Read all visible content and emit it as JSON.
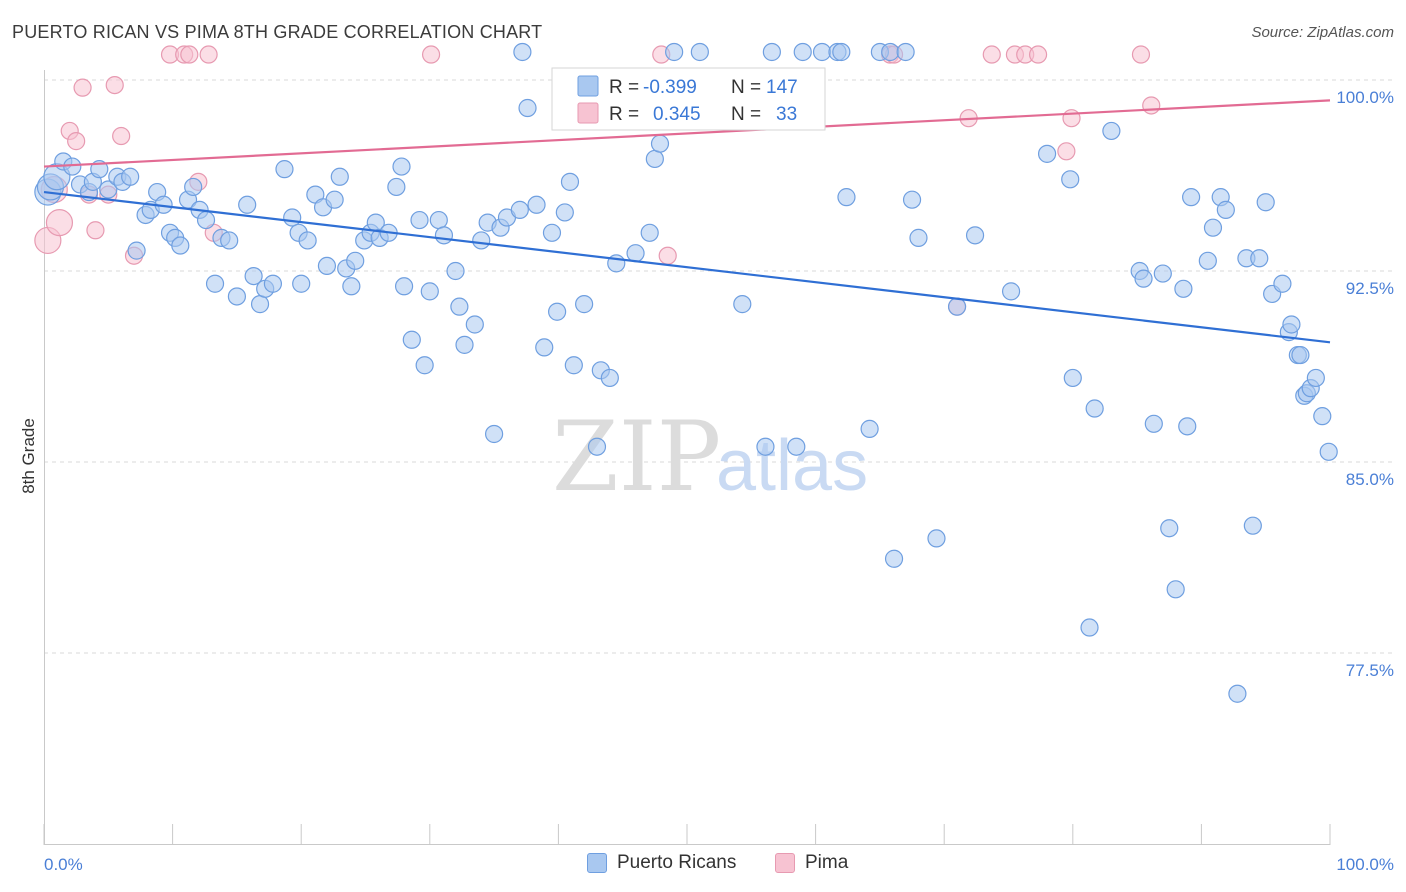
{
  "header": {
    "title": "PUERTO RICAN VS PIMA 8TH GRADE CORRELATION CHART",
    "source": "Source: ZipAtlas.com"
  },
  "watermark": {
    "zip": "ZIP",
    "atlas": "atlas"
  },
  "colors": {
    "blue_fill": "#a9c8f0",
    "blue_stroke": "#6f9fe0",
    "blue_line": "#2f6fd4",
    "pink_fill": "#f7c3d2",
    "pink_stroke": "#e79ab1",
    "pink_line": "#e26b93",
    "accent_text": "#3a78d6",
    "grid": "#d9d9d9"
  },
  "legend": {
    "rows": [
      {
        "r_label": "R =",
        "r_value": "-0.399",
        "n_label": "N =",
        "n_value": "147",
        "series": "blue"
      },
      {
        "r_label": "R =",
        "r_value": "0.345",
        "n_label": "N =",
        "n_value": "33",
        "series": "pink"
      }
    ]
  },
  "bottom_legend": [
    {
      "label": "Puerto Ricans",
      "series": "blue"
    },
    {
      "label": "Pima",
      "series": "pink"
    }
  ],
  "chart_data": {
    "type": "scatter",
    "title": "PUERTO RICAN VS PIMA 8TH GRADE CORRELATION CHART",
    "xlabel": "",
    "ylabel": "8th Grade",
    "xlim": [
      0,
      100
    ],
    "ylim": [
      70,
      101.5
    ],
    "x_tick_labels": [
      "0.0%",
      "100.0%"
    ],
    "y_ticks": [
      {
        "value": 100.0,
        "label": "100.0%"
      },
      {
        "value": 92.5,
        "label": "92.5%"
      },
      {
        "value": 85.0,
        "label": "85.0%"
      },
      {
        "value": 77.5,
        "label": "77.5%"
      }
    ],
    "series": [
      {
        "name": "Puerto Ricans",
        "color": "blue",
        "r": -0.399,
        "n": 147,
        "trend": {
          "x": [
            0,
            100
          ],
          "y": [
            95.6,
            89.7
          ]
        },
        "points": [
          [
            0.3,
            95.6
          ],
          [
            0.5,
            95.8
          ],
          [
            1.0,
            96.2
          ],
          [
            1.5,
            96.8
          ],
          [
            2.2,
            96.6
          ],
          [
            2.8,
            95.9
          ],
          [
            3.5,
            95.6
          ],
          [
            3.8,
            96.0
          ],
          [
            4.3,
            96.5
          ],
          [
            5.0,
            95.7
          ],
          [
            5.7,
            96.2
          ],
          [
            6.1,
            96.0
          ],
          [
            6.7,
            96.2
          ],
          [
            7.2,
            93.3
          ],
          [
            7.9,
            94.7
          ],
          [
            8.3,
            94.9
          ],
          [
            8.8,
            95.6
          ],
          [
            9.3,
            95.1
          ],
          [
            9.8,
            94.0
          ],
          [
            10.2,
            93.8
          ],
          [
            10.6,
            93.5
          ],
          [
            11.2,
            95.3
          ],
          [
            11.6,
            95.8
          ],
          [
            12.1,
            94.9
          ],
          [
            12.6,
            94.5
          ],
          [
            13.3,
            92.0
          ],
          [
            13.8,
            93.8
          ],
          [
            14.4,
            93.7
          ],
          [
            15.0,
            91.5
          ],
          [
            15.8,
            95.1
          ],
          [
            16.3,
            92.3
          ],
          [
            16.8,
            91.2
          ],
          [
            17.2,
            91.8
          ],
          [
            17.8,
            92.0
          ],
          [
            18.7,
            96.5
          ],
          [
            19.3,
            94.6
          ],
          [
            19.8,
            94.0
          ],
          [
            20.0,
            92.0
          ],
          [
            20.5,
            93.7
          ],
          [
            21.1,
            95.5
          ],
          [
            21.7,
            95.0
          ],
          [
            22.0,
            92.7
          ],
          [
            22.6,
            95.3
          ],
          [
            23.0,
            96.2
          ],
          [
            23.5,
            92.6
          ],
          [
            23.9,
            91.9
          ],
          [
            24.2,
            92.9
          ],
          [
            24.9,
            93.7
          ],
          [
            25.4,
            94.0
          ],
          [
            25.8,
            94.4
          ],
          [
            26.1,
            93.8
          ],
          [
            26.8,
            94.0
          ],
          [
            27.4,
            95.8
          ],
          [
            27.8,
            96.6
          ],
          [
            28.0,
            91.9
          ],
          [
            28.6,
            89.8
          ],
          [
            29.2,
            94.5
          ],
          [
            29.6,
            88.8
          ],
          [
            30.0,
            91.7
          ],
          [
            30.7,
            94.5
          ],
          [
            31.1,
            93.9
          ],
          [
            32.0,
            92.5
          ],
          [
            32.3,
            91.1
          ],
          [
            32.7,
            89.6
          ],
          [
            33.5,
            90.4
          ],
          [
            34.0,
            93.7
          ],
          [
            34.5,
            94.4
          ],
          [
            35.0,
            86.1
          ],
          [
            35.5,
            94.2
          ],
          [
            36.0,
            94.6
          ],
          [
            37.0,
            94.9
          ],
          [
            37.2,
            101.1
          ],
          [
            37.6,
            98.9
          ],
          [
            38.3,
            95.1
          ],
          [
            38.9,
            89.5
          ],
          [
            39.5,
            94.0
          ],
          [
            39.9,
            90.9
          ],
          [
            40.5,
            94.8
          ],
          [
            40.9,
            96.0
          ],
          [
            41.2,
            88.8
          ],
          [
            42.0,
            91.2
          ],
          [
            43.0,
            85.6
          ],
          [
            43.3,
            88.6
          ],
          [
            44.0,
            88.3
          ],
          [
            44.5,
            92.8
          ],
          [
            46.0,
            93.2
          ],
          [
            47.1,
            94.0
          ],
          [
            47.5,
            96.9
          ],
          [
            47.9,
            97.5
          ],
          [
            49.0,
            101.1
          ],
          [
            51.0,
            101.1
          ],
          [
            54.3,
            91.2
          ],
          [
            56.1,
            85.6
          ],
          [
            56.6,
            101.1
          ],
          [
            58.5,
            85.6
          ],
          [
            59.0,
            101.1
          ],
          [
            60.5,
            101.1
          ],
          [
            61.7,
            101.1
          ],
          [
            62.0,
            101.1
          ],
          [
            62.4,
            95.4
          ],
          [
            64.2,
            86.3
          ],
          [
            65.0,
            101.1
          ],
          [
            65.8,
            101.1
          ],
          [
            66.1,
            81.2
          ],
          [
            67.0,
            101.1
          ],
          [
            67.5,
            95.3
          ],
          [
            68.0,
            93.8
          ],
          [
            69.4,
            82.0
          ],
          [
            71.0,
            91.1
          ],
          [
            72.4,
            93.9
          ],
          [
            75.2,
            91.7
          ],
          [
            78.0,
            97.1
          ],
          [
            79.8,
            96.1
          ],
          [
            80.0,
            88.3
          ],
          [
            81.3,
            78.5
          ],
          [
            81.7,
            87.1
          ],
          [
            83.0,
            98.0
          ],
          [
            85.2,
            92.5
          ],
          [
            85.5,
            92.2
          ],
          [
            86.3,
            86.5
          ],
          [
            87.0,
            92.4
          ],
          [
            87.5,
            82.4
          ],
          [
            88.0,
            80.0
          ],
          [
            88.6,
            91.8
          ],
          [
            88.9,
            86.4
          ],
          [
            89.2,
            95.4
          ],
          [
            90.5,
            92.9
          ],
          [
            90.9,
            94.2
          ],
          [
            91.5,
            95.4
          ],
          [
            91.9,
            94.9
          ],
          [
            92.8,
            75.9
          ],
          [
            93.5,
            93.0
          ],
          [
            94.0,
            82.5
          ],
          [
            94.5,
            93.0
          ],
          [
            95.0,
            95.2
          ],
          [
            95.5,
            91.6
          ],
          [
            96.3,
            92.0
          ],
          [
            96.8,
            90.1
          ],
          [
            97.0,
            90.4
          ],
          [
            97.5,
            89.2
          ],
          [
            97.7,
            89.2
          ],
          [
            98.0,
            87.6
          ],
          [
            98.2,
            87.7
          ],
          [
            98.5,
            87.9
          ],
          [
            98.9,
            88.3
          ],
          [
            99.4,
            86.8
          ],
          [
            99.9,
            85.4
          ]
        ]
      },
      {
        "name": "Pima",
        "color": "pink",
        "r": 0.345,
        "n": 33,
        "trend": {
          "x": [
            0,
            100
          ],
          "y": [
            96.6,
            99.2
          ]
        },
        "points": [
          [
            0.3,
            93.7
          ],
          [
            0.8,
            95.7
          ],
          [
            1.2,
            94.4
          ],
          [
            2.0,
            98.0
          ],
          [
            2.5,
            97.6
          ],
          [
            3.0,
            99.7
          ],
          [
            3.5,
            95.5
          ],
          [
            4.0,
            94.1
          ],
          [
            5.0,
            95.5
          ],
          [
            5.5,
            99.8
          ],
          [
            6.0,
            97.8
          ],
          [
            7.0,
            93.1
          ],
          [
            9.8,
            101.0
          ],
          [
            10.9,
            101.0
          ],
          [
            11.3,
            101.0
          ],
          [
            12.0,
            96.0
          ],
          [
            12.8,
            101.0
          ],
          [
            13.2,
            94.0
          ],
          [
            30.1,
            101.0
          ],
          [
            48.0,
            101.0
          ],
          [
            48.5,
            93.1
          ],
          [
            65.8,
            101.0
          ],
          [
            66.1,
            101.0
          ],
          [
            71.0,
            91.1
          ],
          [
            71.9,
            98.5
          ],
          [
            73.7,
            101.0
          ],
          [
            75.5,
            101.0
          ],
          [
            76.3,
            101.0
          ],
          [
            77.3,
            101.0
          ],
          [
            79.5,
            97.2
          ],
          [
            79.9,
            98.5
          ],
          [
            85.3,
            101.0
          ],
          [
            86.1,
            99.0
          ]
        ]
      }
    ]
  }
}
